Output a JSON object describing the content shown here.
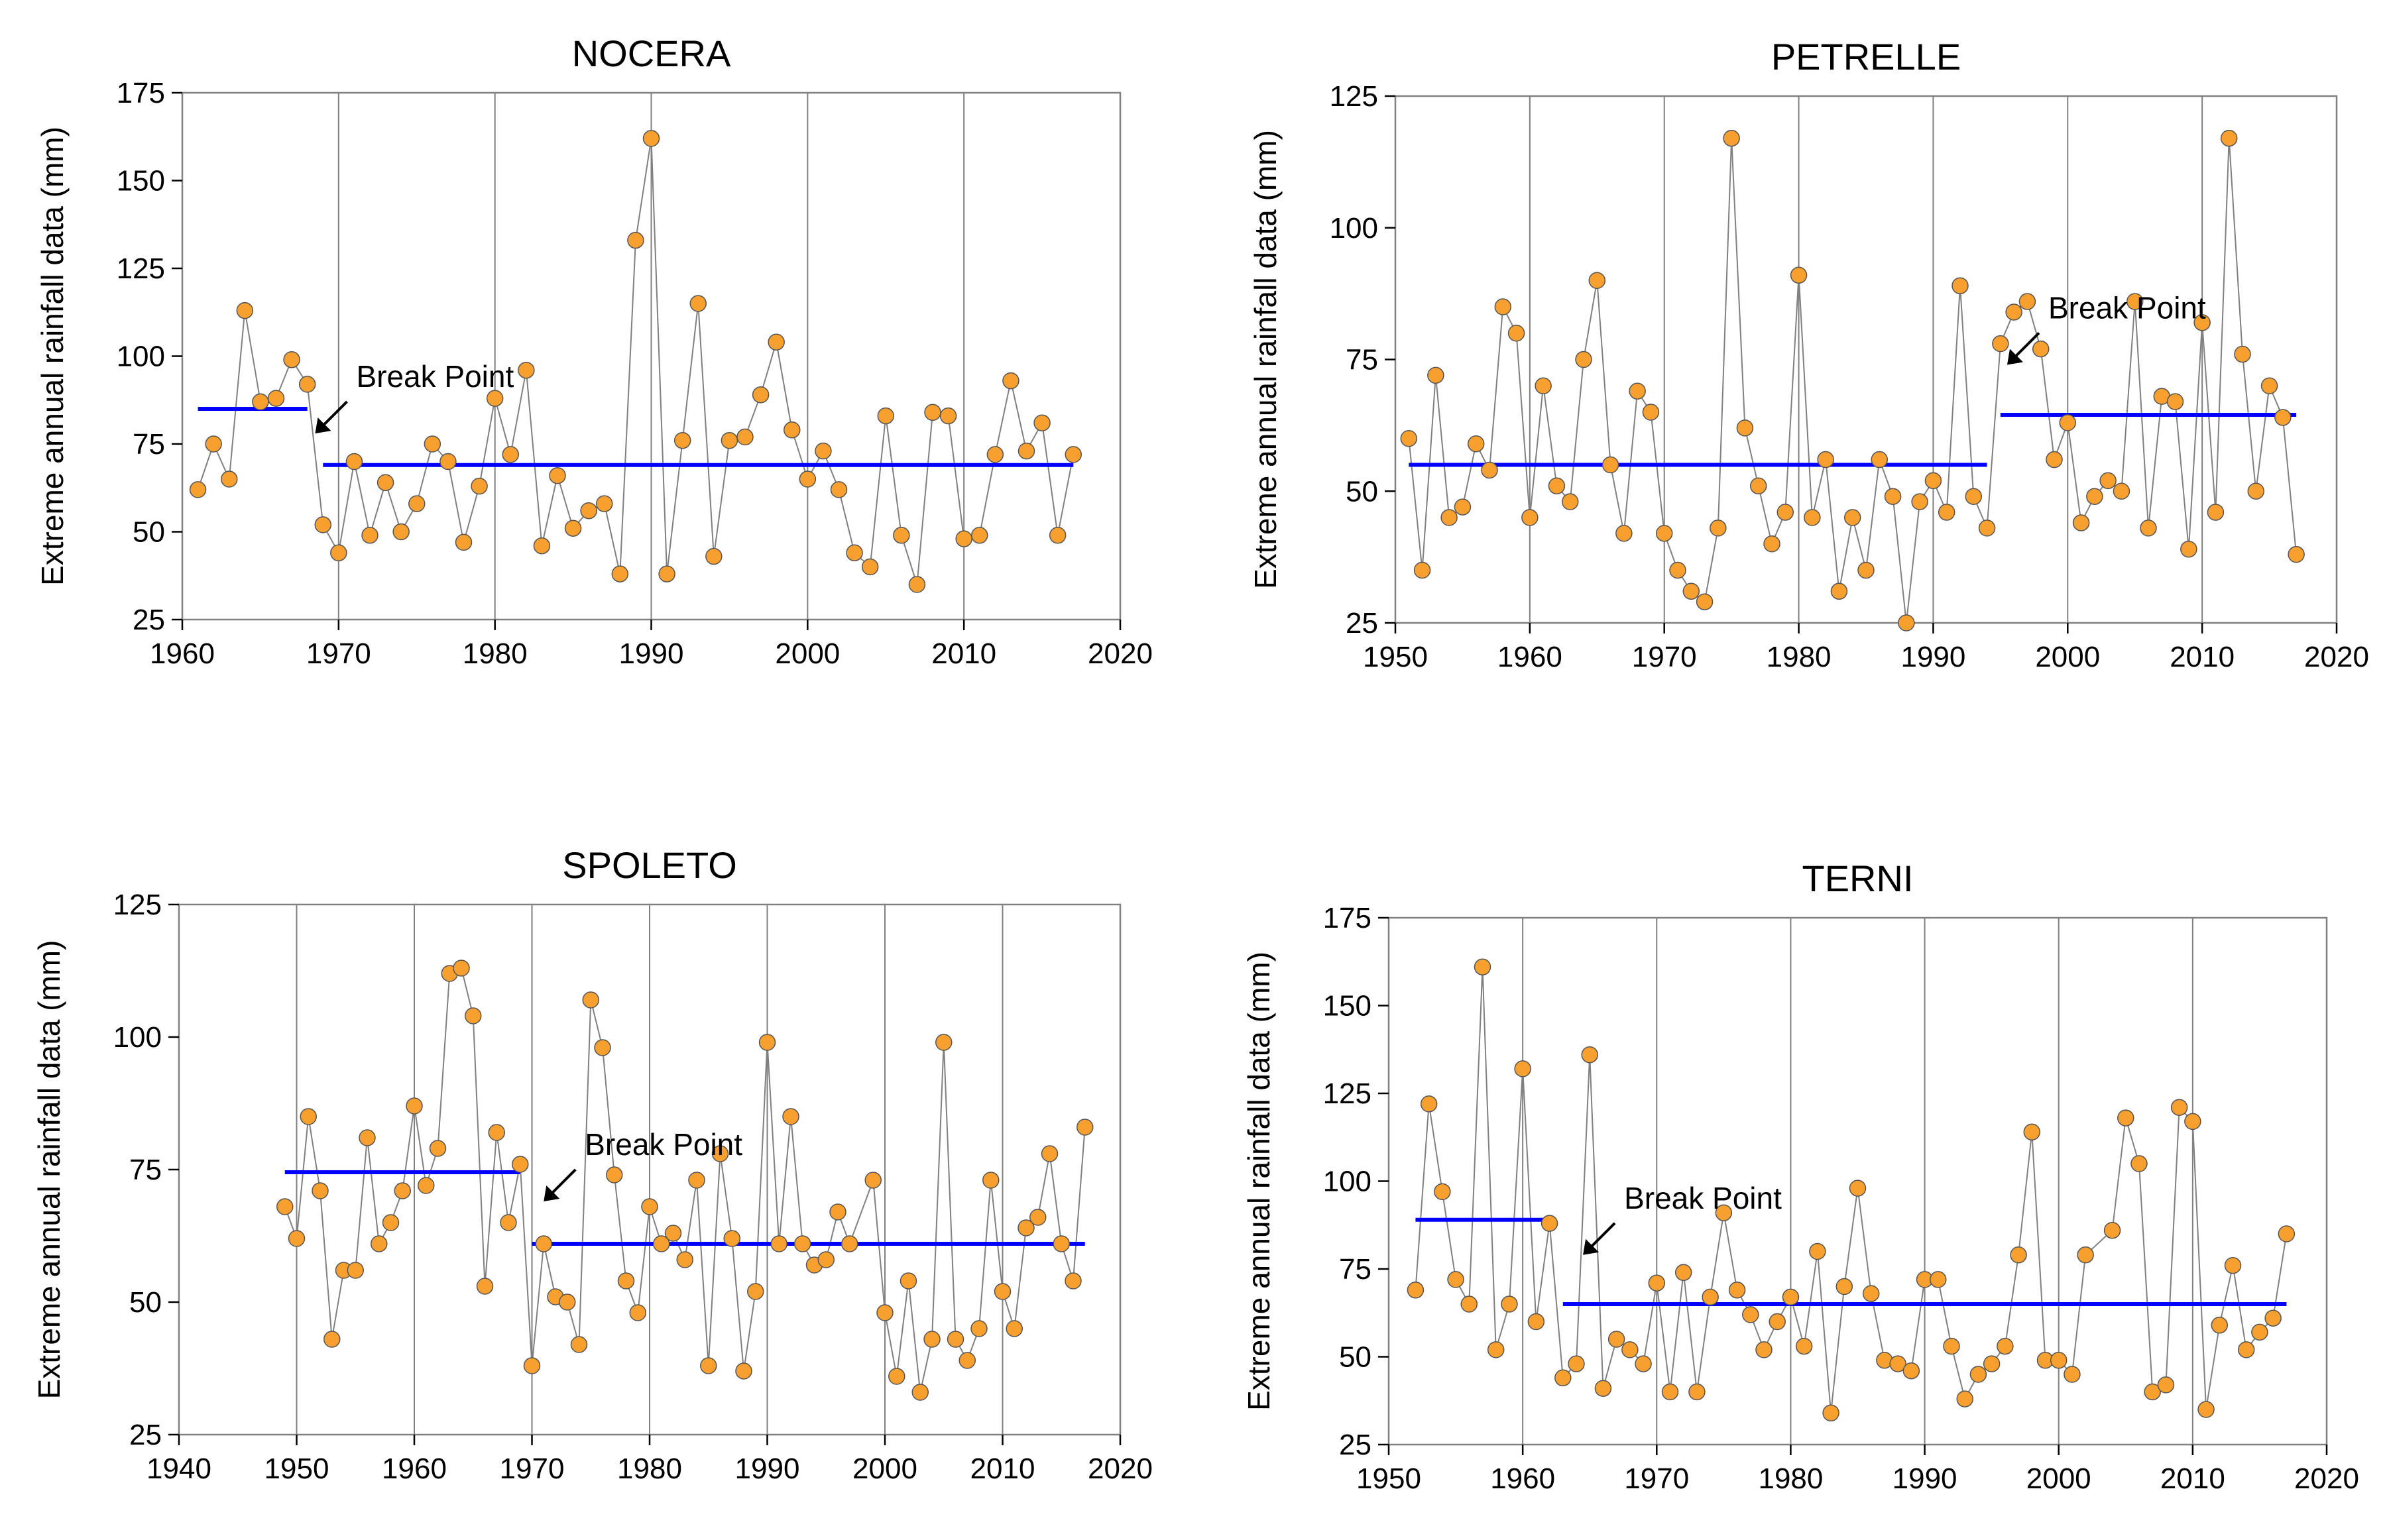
{
  "figure": {
    "marker_color": "#f7a030",
    "line_color": "#808080",
    "mean_color": "#0000ff",
    "grid_color": "#808080"
  },
  "chart_data": [
    {
      "type": "scatter",
      "title": "NOCERA",
      "ylabel": "Extreme annual rainfall data (mm)",
      "xlabel": "",
      "xlim": [
        1960,
        2020
      ],
      "ylim": [
        25,
        175
      ],
      "xticks": [
        1960,
        1970,
        1980,
        1990,
        2000,
        2010,
        2020
      ],
      "yticks": [
        25,
        50,
        75,
        100,
        125,
        150,
        175
      ],
      "annotation": {
        "text": "Break Point",
        "year": 1968.5,
        "value": 78
      },
      "x": [
        1961,
        1962,
        1963,
        1964,
        1965,
        1966,
        1967,
        1968,
        1969,
        1970,
        1971,
        1972,
        1973,
        1974,
        1975,
        1976,
        1977,
        1978,
        1979,
        1980,
        1981,
        1982,
        1983,
        1984,
        1985,
        1986,
        1987,
        1988,
        1989,
        1990,
        1991,
        1992,
        1993,
        1994,
        1995,
        1996,
        1997,
        1998,
        1999,
        2000,
        2001,
        2002,
        2003,
        2004,
        2005,
        2006,
        2007,
        2008,
        2009,
        2010,
        2011,
        2012,
        2013,
        2014,
        2015,
        2016,
        2017
      ],
      "values": [
        62,
        75,
        65,
        113,
        87,
        88,
        99,
        92,
        52,
        44,
        70,
        49,
        64,
        50,
        58,
        75,
        70,
        47,
        63,
        88,
        72,
        96,
        46,
        66,
        51,
        56,
        58,
        38,
        133,
        162,
        38,
        76,
        115,
        43,
        76,
        77,
        89,
        104,
        79,
        65,
        73,
        62,
        44,
        40,
        83,
        49,
        35,
        84,
        83,
        48,
        49,
        72,
        93,
        73,
        81,
        49,
        72
      ],
      "means": [
        {
          "start": 1961,
          "end": 1968,
          "value": 85
        },
        {
          "start": 1969,
          "end": 2017,
          "value": 69
        }
      ]
    },
    {
      "type": "scatter",
      "title": "PETRELLE",
      "ylabel": "Extreme annual rainfall data (mm)",
      "xlabel": "",
      "xlim": [
        1950,
        2020
      ],
      "ylim": [
        25,
        125
      ],
      "xticks": [
        1950,
        1960,
        1970,
        1980,
        1990,
        2000,
        2010,
        2020
      ],
      "yticks": [
        25,
        50,
        75,
        100,
        125
      ],
      "annotation": {
        "text": "Break Point",
        "year": 1995.5,
        "value": 74
      },
      "x": [
        1951,
        1952,
        1953,
        1954,
        1955,
        1956,
        1957,
        1958,
        1959,
        1960,
        1961,
        1962,
        1963,
        1964,
        1965,
        1966,
        1967,
        1968,
        1969,
        1970,
        1971,
        1972,
        1973,
        1974,
        1975,
        1976,
        1977,
        1978,
        1979,
        1980,
        1981,
        1982,
        1983,
        1984,
        1985,
        1986,
        1987,
        1988,
        1989,
        1990,
        1991,
        1992,
        1993,
        1994,
        1995,
        1996,
        1997,
        1998,
        1999,
        2000,
        2001,
        2002,
        2003,
        2004,
        2005,
        2006,
        2007,
        2008,
        2009,
        2010,
        2011,
        2012,
        2013,
        2014,
        2015,
        2016,
        2017
      ],
      "values": [
        60,
        35,
        72,
        45,
        47,
        59,
        54,
        85,
        80,
        45,
        70,
        51,
        48,
        75,
        90,
        55,
        42,
        69,
        65,
        42,
        35,
        31,
        29,
        43,
        117,
        62,
        51,
        40,
        46,
        91,
        45,
        56,
        31,
        45,
        35,
        56,
        49,
        25,
        48,
        52,
        46,
        89,
        49,
        43,
        78,
        84,
        86,
        77,
        56,
        63,
        44,
        49,
        52,
        50,
        86,
        43,
        68,
        67,
        39,
        82,
        46,
        117,
        76,
        50,
        70,
        64,
        38
      ],
      "means": [
        {
          "start": 1951,
          "end": 1994,
          "value": 55
        },
        {
          "start": 1995,
          "end": 2017,
          "value": 64.5
        }
      ]
    },
    {
      "type": "scatter",
      "title": "SPOLETO",
      "ylabel": "Extreme annual rainfall data (mm)",
      "xlabel": "",
      "xlim": [
        1940,
        2020
      ],
      "ylim": [
        25,
        125
      ],
      "xticks": [
        1940,
        1950,
        1960,
        1970,
        1980,
        1990,
        2000,
        2010,
        2020
      ],
      "yticks": [
        25,
        50,
        75,
        100,
        125
      ],
      "annotation": {
        "text": "Break Point",
        "year": 1971,
        "value": 69
      },
      "x": [
        1949,
        1950,
        1951,
        1952,
        1953,
        1954,
        1955,
        1956,
        1957,
        1958,
        1959,
        1960,
        1961,
        1962,
        1963,
        1964,
        1965,
        1966,
        1967,
        1968,
        1969,
        1970,
        1971,
        1972,
        1973,
        1974,
        1975,
        1976,
        1977,
        1978,
        1979,
        1980,
        1981,
        1982,
        1983,
        1984,
        1985,
        1986,
        1987,
        1988,
        1989,
        1990,
        1991,
        1992,
        1993,
        1994,
        1995,
        1996,
        1997,
        1999,
        2000,
        2001,
        2002,
        2003,
        2004,
        2005,
        2006,
        2007,
        2008,
        2009,
        2010,
        2011,
        2012,
        2013,
        2014,
        2015,
        2016,
        2017
      ],
      "values": [
        68,
        62,
        85,
        71,
        43,
        56,
        56,
        81,
        61,
        65,
        71,
        87,
        72,
        79,
        112,
        113,
        104,
        53,
        82,
        65,
        76,
        38,
        61,
        51,
        50,
        42,
        107,
        98,
        74,
        54,
        48,
        68,
        61,
        63,
        58,
        73,
        38,
        78,
        62,
        37,
        52,
        99,
        61,
        85,
        61,
        57,
        58,
        67,
        61,
        73,
        48,
        36,
        54,
        33,
        43,
        99,
        43,
        39,
        45,
        73,
        52,
        45,
        64,
        66,
        78,
        61,
        54,
        83
      ],
      "means": [
        {
          "start": 1949,
          "end": 1969,
          "value": 74.5
        },
        {
          "start": 1970,
          "end": 2017,
          "value": 61
        }
      ]
    },
    {
      "type": "scatter",
      "title": "TERNI",
      "ylabel": "Extreme annual rainfall data (mm)",
      "xlabel": "",
      "xlim": [
        1950,
        2020
      ],
      "ylim": [
        25,
        175
      ],
      "xticks": [
        1950,
        1960,
        1970,
        1980,
        1990,
        2000,
        2010,
        2020
      ],
      "yticks": [
        25,
        50,
        75,
        100,
        125,
        150,
        175
      ],
      "annotation": {
        "text": "Break Point",
        "year": 1964.5,
        "value": 79
      },
      "x": [
        1952,
        1953,
        1954,
        1955,
        1956,
        1957,
        1958,
        1959,
        1960,
        1961,
        1962,
        1963,
        1964,
        1965,
        1966,
        1967,
        1968,
        1969,
        1970,
        1971,
        1972,
        1973,
        1974,
        1975,
        1976,
        1977,
        1978,
        1979,
        1980,
        1981,
        1982,
        1983,
        1984,
        1985,
        1986,
        1987,
        1988,
        1989,
        1990,
        1991,
        1992,
        1993,
        1994,
        1995,
        1996,
        1997,
        1998,
        1999,
        2000,
        2001,
        2002,
        2004,
        2005,
        2006,
        2007,
        2008,
        2009,
        2010,
        2011,
        2012,
        2013,
        2014,
        2015,
        2016,
        2017
      ],
      "values": [
        69,
        122,
        97,
        72,
        65,
        161,
        52,
        65,
        132,
        60,
        88,
        44,
        48,
        136,
        41,
        55,
        52,
        48,
        71,
        40,
        74,
        40,
        67,
        91,
        69,
        62,
        52,
        60,
        67,
        53,
        80,
        34,
        70,
        98,
        68,
        49,
        48,
        46,
        72,
        72,
        53,
        38,
        45,
        48,
        53,
        79,
        114,
        49,
        49,
        45,
        79,
        86,
        118,
        105,
        40,
        42,
        121,
        117,
        35,
        59,
        76,
        52,
        57,
        61,
        85
      ],
      "means": [
        {
          "start": 1952,
          "end": 1962,
          "value": 89
        },
        {
          "start": 1963,
          "end": 2017,
          "value": 65
        }
      ]
    }
  ]
}
